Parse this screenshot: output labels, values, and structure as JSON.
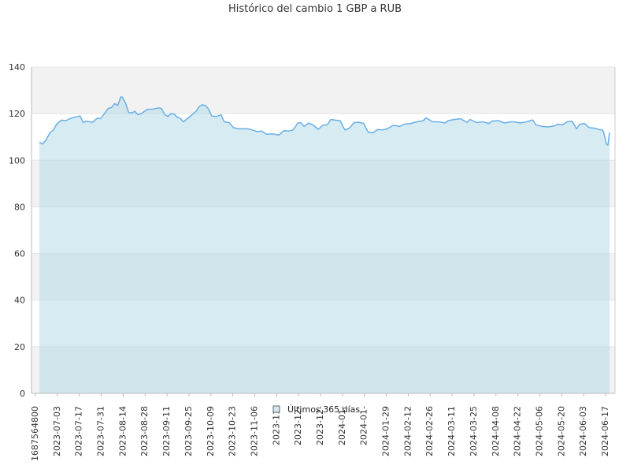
{
  "chart_data": {
    "type": "area",
    "title": "Histórico del cambio 1 GBP a RUB",
    "xlabel": "",
    "ylabel": "",
    "ylim": [
      0,
      140
    ],
    "yticks": [
      0,
      20,
      40,
      60,
      80,
      100,
      120,
      140
    ],
    "x_tick_labels": [
      "1687564800",
      "2023-07-03",
      "2023-07-17",
      "2023-07-31",
      "2023-08-14",
      "2023-08-28",
      "2023-09-11",
      "2023-09-25",
      "2023-10-09",
      "2023-10-23",
      "2023-11-06",
      "2023-11-",
      "2023-12-",
      "2023-12-",
      "2024-01-",
      "2024-01-",
      "2024-01-29",
      "2024-02-12",
      "2024-02-26",
      "2024-03-11",
      "2024-03-25",
      "2024-04-08",
      "2024-04-22",
      "2024-05-06",
      "2024-05-20",
      "2024-06-03",
      "2024-06-17"
    ],
    "grid": true,
    "legend_position": "bottom-center",
    "series": [
      {
        "name": "Últimos 365 días",
        "x": [
          "2023-06-24",
          "2023-06-26",
          "2023-06-28",
          "2023-07-01",
          "2023-07-03",
          "2023-07-05",
          "2023-07-08",
          "2023-07-11",
          "2023-07-14",
          "2023-07-17",
          "2023-07-20",
          "2023-07-22",
          "2023-07-24",
          "2023-07-26",
          "2023-07-28",
          "2023-07-31",
          "2023-08-02",
          "2023-08-04",
          "2023-08-07",
          "2023-08-09",
          "2023-08-11",
          "2023-08-13",
          "2023-08-15",
          "2023-08-16",
          "2023-08-18",
          "2023-08-20",
          "2023-08-22",
          "2023-08-24",
          "2023-08-26",
          "2023-08-28",
          "2023-09-01",
          "2023-09-05",
          "2023-09-08",
          "2023-09-10",
          "2023-09-12",
          "2023-09-14",
          "2023-09-16",
          "2023-09-18",
          "2023-09-20",
          "2023-09-22",
          "2023-09-24",
          "2023-09-27",
          "2023-09-30",
          "2023-10-02",
          "2023-10-04",
          "2023-10-06",
          "2023-10-08",
          "2023-10-10",
          "2023-10-12",
          "2023-10-15",
          "2023-10-18",
          "2023-10-20",
          "2023-10-23",
          "2023-10-26",
          "2023-10-29",
          "2023-11-01",
          "2023-11-04",
          "2023-11-07",
          "2023-11-10",
          "2023-11-13",
          "2023-11-16",
          "2023-11-20",
          "2023-11-24",
          "2023-11-27",
          "2023-11-30",
          "2023-12-03",
          "2023-12-06",
          "2023-12-08",
          "2023-12-10",
          "2023-12-13",
          "2023-12-16",
          "2023-12-19",
          "2023-12-22",
          "2023-12-25",
          "2023-12-27",
          "2023-12-30",
          "2024-01-02",
          "2024-01-05",
          "2024-01-08",
          "2024-01-11",
          "2024-01-14",
          "2024-01-17",
          "2024-01-20",
          "2024-01-23",
          "2024-01-26",
          "2024-01-29",
          "2024-02-01",
          "2024-02-05",
          "2024-02-09",
          "2024-02-12",
          "2024-02-16",
          "2024-02-20",
          "2024-02-24",
          "2024-02-26",
          "2024-03-01",
          "2024-03-05",
          "2024-03-09",
          "2024-03-11",
          "2024-03-15",
          "2024-03-19",
          "2024-03-23",
          "2024-03-25",
          "2024-03-29",
          "2024-04-02",
          "2024-04-06",
          "2024-04-08",
          "2024-04-12",
          "2024-04-16",
          "2024-04-20",
          "2024-04-22",
          "2024-04-26",
          "2024-04-30",
          "2024-05-04",
          "2024-05-06",
          "2024-05-10",
          "2024-05-14",
          "2024-05-18",
          "2024-05-20",
          "2024-05-23",
          "2024-05-26",
          "2024-05-29",
          "2024-06-01",
          "2024-06-03",
          "2024-06-06",
          "2024-06-09",
          "2024-06-12",
          "2024-06-14",
          "2024-06-16",
          "2024-06-17",
          "2024-06-18",
          "2024-06-19",
          "2024-06-20",
          "2024-06-21",
          "2024-06-22"
        ],
        "values": [
          107.8,
          107.0,
          108.5,
          112.0,
          113.0,
          115.5,
          117.2,
          117.0,
          118.0,
          118.6,
          119.0,
          116.2,
          116.8,
          116.5,
          116.3,
          118.1,
          117.8,
          119.5,
          122.3,
          122.6,
          124.3,
          123.5,
          127.2,
          127.0,
          124.5,
          120.5,
          120.3,
          121.0,
          119.5,
          120.0,
          121.8,
          122.0,
          122.5,
          122.2,
          119.5,
          118.8,
          120.0,
          119.8,
          118.5,
          118.0,
          116.5,
          118.2,
          119.8,
          121.0,
          123.0,
          123.8,
          123.5,
          122.0,
          119.0,
          118.8,
          119.5,
          116.5,
          116.2,
          114.0,
          113.5,
          113.5,
          113.5,
          113.0,
          112.3,
          112.5,
          111.2,
          111.3,
          110.8,
          112.7,
          112.5,
          113.0,
          116.0,
          116.2,
          114.5,
          116.0,
          115.0,
          113.3,
          115.0,
          115.3,
          117.5,
          117.2,
          117.0,
          113.0,
          113.8,
          116.2,
          116.3,
          115.8,
          112.0,
          111.8,
          113.2,
          113.0,
          113.5,
          115.0,
          114.5,
          115.5,
          115.8,
          116.5,
          117.0,
          118.2,
          116.5,
          116.5,
          116.0,
          117.0,
          117.5,
          117.8,
          116.2,
          117.5,
          116.2,
          116.5,
          115.8,
          116.8,
          117.0,
          116.0,
          116.5,
          116.5,
          116.0,
          116.5,
          117.3,
          115.2,
          114.5,
          114.3,
          114.8,
          115.5,
          115.2,
          116.5,
          116.8,
          113.5,
          115.5,
          115.8,
          114.0,
          113.8,
          113.5,
          113.0,
          113.2,
          112.5,
          110.0,
          107.0,
          106.5,
          112.0
        ]
      }
    ]
  }
}
